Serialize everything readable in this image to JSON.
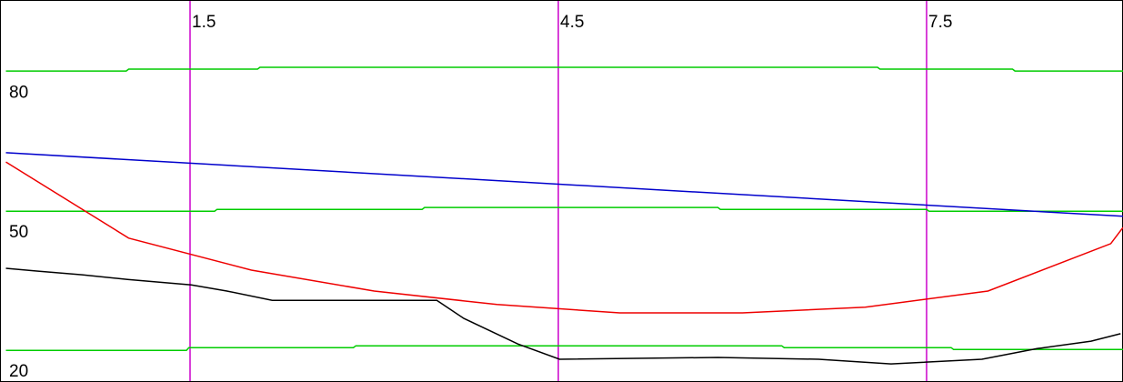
{
  "chart_data": {
    "type": "line",
    "xlim": [
      0,
      9.1
    ],
    "ylim": [
      15.7,
      98.0
    ],
    "xticks": [
      1.5,
      4.5,
      7.5
    ],
    "yticks": [
      20,
      50,
      80
    ],
    "tick_color": "#cc00cc",
    "series": [
      {
        "color": "#00cc00",
        "x": [
          0,
          0.98,
          1.0,
          2.05,
          2.07,
          7.1,
          7.12,
          8.2,
          8.22,
          9.1
        ],
        "values": [
          82.7,
          82.7,
          83.1,
          83.1,
          83.5,
          83.5,
          83.1,
          83.1,
          82.7,
          82.7
        ]
      },
      {
        "color": "#00cc00",
        "x": [
          0,
          1.7,
          1.72,
          3.39,
          3.41,
          5.8,
          5.82,
          7.5,
          7.52,
          9.1
        ],
        "values": [
          52.5,
          52.5,
          52.9,
          52.9,
          53.3,
          53.3,
          52.9,
          52.9,
          52.5,
          52.5
        ]
      },
      {
        "color": "#00cc00",
        "x": [
          0,
          1.47,
          1.49,
          2.83,
          2.85,
          6.32,
          6.34,
          7.7,
          7.72,
          9.1
        ],
        "values": [
          22.5,
          22.5,
          23.1,
          23.1,
          23.5,
          23.5,
          23.1,
          23.1,
          22.7,
          22.7
        ]
      },
      {
        "color": "#0000cc",
        "x": [
          0,
          9.1
        ],
        "values": [
          65.1,
          51.4
        ]
      },
      {
        "color": "#ee0000",
        "x": [
          0,
          1,
          2,
          3,
          4,
          5,
          6,
          7,
          8,
          9,
          9.1
        ],
        "values": [
          63.1,
          46.7,
          39.8,
          35.3,
          32.4,
          30.6,
          30.6,
          31.8,
          35.3,
          45.5,
          49.0
        ]
      },
      {
        "color": "#000000",
        "x": [
          0,
          0.25,
          0.62,
          0.99,
          1.51,
          1.8,
          2.17,
          3.51,
          3.73,
          4.17,
          4.51,
          5.8,
          6.62,
          7.21,
          7.95,
          8.4,
          8.84,
          9.08
        ],
        "values": [
          40.2,
          39.6,
          38.8,
          37.8,
          36.6,
          35.3,
          33.3,
          33.3,
          29.4,
          23.9,
          20.6,
          21.0,
          20.6,
          19.6,
          20.6,
          22.9,
          24.5,
          26.1
        ]
      }
    ]
  }
}
